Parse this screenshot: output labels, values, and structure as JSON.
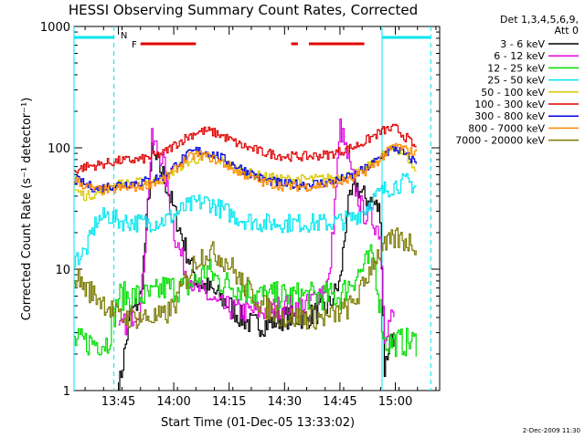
{
  "chart_data": {
    "type": "line",
    "title": "HESSI Observing Summary Count Rates, Corrected",
    "xlabel": "Start Time (01-Dec-05 13:33:02)",
    "ylabel": "Corrected Count Rate (s⁻¹ detector⁻¹)",
    "yscale": "log",
    "ylim": [
      1,
      1000
    ],
    "xlim_minutes": [
      13.5,
      13.93,
      14.0,
      14.2,
      14.4,
      14.6,
      14.8,
      15.0,
      15.2
    ],
    "x_range_hours": [
      13.55,
      15.2
    ],
    "x_ticks": [
      {
        "t": 13.75,
        "label": "13:45"
      },
      {
        "t": 14.0,
        "label": "14:00"
      },
      {
        "t": 14.25,
        "label": "14:15"
      },
      {
        "t": 14.5,
        "label": "14:30"
      },
      {
        "t": 14.75,
        "label": "14:45"
      },
      {
        "t": 15.0,
        "label": "15:00"
      }
    ],
    "y_ticks": [
      {
        "v": 1,
        "label": "1"
      },
      {
        "v": 10,
        "label": "10"
      },
      {
        "v": 100,
        "label": "100"
      },
      {
        "v": 1000,
        "label": "1000"
      }
    ],
    "legend_header": [
      "Det 1,3,4,5,6,9,",
      "Att 0"
    ],
    "legend_position": "right",
    "footer_date": "2-Dec-2009 11:30",
    "annotations": {
      "night_marker": "N",
      "flare_marker": "F",
      "flare_bars": [
        [
          13.85,
          14.1
        ],
        [
          14.53,
          14.56
        ],
        [
          14.61,
          14.86
        ]
      ],
      "night_lines": [
        [
          13.55,
          13.73
        ],
        [
          14.94,
          15.16
        ]
      ]
    },
    "series": [
      {
        "name": "3 - 6 keV",
        "color": "#000000",
        "x": [
          13.55,
          13.75,
          13.8,
          13.85,
          13.9,
          13.95,
          14.0,
          14.05,
          14.1,
          14.15,
          14.2,
          14.25,
          14.3,
          14.35,
          14.4,
          14.5,
          14.6,
          14.7,
          14.75,
          14.78,
          14.82,
          14.85,
          14.9,
          14.93,
          14.95,
          14.98,
          15.0,
          15.05,
          15.1
        ],
        "y": [
          null,
          1.0,
          4.0,
          6.0,
          90,
          60,
          30,
          15,
          8,
          7,
          6,
          5,
          4,
          3.5,
          3.5,
          4,
          4,
          5,
          8,
          30,
          50,
          40,
          35,
          30,
          1.5,
          3.0,
          2.5,
          null,
          null
        ]
      },
      {
        "name": "6 - 12 keV",
        "color": "#e000e0",
        "x": [
          13.75,
          13.8,
          13.85,
          13.9,
          13.95,
          14.0,
          14.05,
          14.1,
          14.15,
          14.2,
          14.3,
          14.4,
          14.5,
          14.6,
          14.7,
          14.75,
          14.8,
          14.85,
          14.9,
          14.93,
          14.95,
          14.98,
          15.0
        ],
        "y": [
          3.0,
          4.0,
          5.0,
          115,
          80,
          20,
          10,
          7,
          6,
          5,
          4.5,
          4.5,
          5,
          5,
          8,
          150,
          60,
          30,
          25,
          20,
          3,
          4,
          4
        ]
      },
      {
        "name": "12 - 25 keV",
        "color": "#00dd00",
        "x": [
          13.55,
          13.7,
          13.75,
          13.8,
          13.85,
          13.9,
          13.95,
          14.0,
          14.05,
          14.1,
          14.15,
          14.2,
          14.3,
          14.4,
          14.5,
          14.6,
          14.7,
          14.75,
          14.8,
          14.85,
          14.9,
          14.95,
          15.0,
          15.05,
          15.1
        ],
        "y": [
          2.5,
          2.5,
          6,
          6,
          6,
          6,
          7,
          7,
          7,
          8,
          10,
          8,
          7,
          6,
          6,
          6,
          6,
          6,
          8,
          10,
          13,
          2.5,
          2.5,
          2.5,
          2.5
        ]
      },
      {
        "name": "25 - 50 keV",
        "color": "#00e5ee",
        "x": [
          13.55,
          13.6,
          13.65,
          13.7,
          13.75,
          13.85,
          13.95,
          14.0,
          14.05,
          14.1,
          14.15,
          14.2,
          14.3,
          14.4,
          14.5,
          14.6,
          14.7,
          14.8,
          14.85,
          14.9,
          14.95,
          15.0,
          15.05,
          15.1
        ],
        "y": [
          12,
          14,
          25,
          28,
          25,
          24,
          25,
          28,
          32,
          35,
          36,
          32,
          26,
          24,
          24,
          24,
          24,
          26,
          30,
          38,
          45,
          50,
          52,
          48
        ]
      },
      {
        "name": "50 - 100 keV",
        "color": "#d8c800",
        "x": [
          13.55,
          13.6,
          13.65,
          13.7,
          13.75,
          13.85,
          13.95,
          14.0,
          14.05,
          14.1,
          14.15,
          14.2,
          14.3,
          14.4,
          14.5,
          14.6,
          14.7,
          14.8,
          14.85,
          14.9,
          14.95,
          15.0,
          15.05,
          15.1
        ],
        "y": [
          45,
          40,
          42,
          47,
          50,
          52,
          55,
          65,
          75,
          80,
          85,
          80,
          65,
          58,
          55,
          55,
          56,
          60,
          65,
          75,
          90,
          100,
          85,
          60
        ]
      },
      {
        "name": "100 - 300 keV",
        "color": "#e00000",
        "x": [
          13.55,
          13.6,
          13.65,
          13.7,
          13.75,
          13.85,
          13.95,
          14.0,
          14.05,
          14.1,
          14.15,
          14.2,
          14.3,
          14.4,
          14.5,
          14.6,
          14.7,
          14.8,
          14.85,
          14.9,
          14.95,
          15.0,
          15.05,
          15.1
        ],
        "y": [
          65,
          70,
          72,
          75,
          78,
          80,
          90,
          105,
          120,
          135,
          138,
          130,
          105,
          92,
          85,
          85,
          88,
          100,
          110,
          125,
          140,
          145,
          120,
          95
        ]
      },
      {
        "name": "300 - 800 keV",
        "color": "#0000e0",
        "x": [
          13.55,
          13.6,
          13.65,
          13.7,
          13.75,
          13.85,
          13.95,
          14.0,
          14.05,
          14.1,
          14.15,
          14.2,
          14.3,
          14.4,
          14.5,
          14.6,
          14.7,
          14.8,
          14.85,
          14.9,
          14.95,
          15.0,
          15.05,
          15.1
        ],
        "y": [
          55,
          50,
          46,
          48,
          50,
          52,
          58,
          70,
          85,
          95,
          92,
          85,
          68,
          55,
          50,
          50,
          52,
          58,
          65,
          75,
          90,
          100,
          85,
          75
        ]
      },
      {
        "name": "800 - 7000 keV",
        "color": "#ff8800",
        "x": [
          13.55,
          13.6,
          13.65,
          13.7,
          13.75,
          13.85,
          13.95,
          14.0,
          14.05,
          14.1,
          14.15,
          14.2,
          14.3,
          14.4,
          14.5,
          14.6,
          14.7,
          14.8,
          14.85,
          14.9,
          14.95,
          15.0,
          15.05,
          15.1
        ],
        "y": [
          55,
          48,
          45,
          45,
          46,
          48,
          55,
          65,
          80,
          88,
          85,
          78,
          62,
          52,
          48,
          48,
          50,
          55,
          62,
          72,
          88,
          105,
          95,
          90
        ]
      },
      {
        "name": "7000 - 20000 keV",
        "color": "#7a7a00",
        "x": [
          13.55,
          13.6,
          13.65,
          13.7,
          13.75,
          13.85,
          13.95,
          14.0,
          14.05,
          14.1,
          14.15,
          14.2,
          14.25,
          14.3,
          14.4,
          14.5,
          14.6,
          14.7,
          14.8,
          14.85,
          14.9,
          14.95,
          15.0,
          15.05,
          15.1
        ],
        "y": [
          9,
          7,
          6,
          5,
          4,
          4,
          4,
          5,
          8,
          12,
          14,
          13,
          11,
          8,
          5,
          4,
          4,
          4,
          5,
          7,
          12,
          15,
          18,
          17,
          16
        ]
      }
    ]
  }
}
